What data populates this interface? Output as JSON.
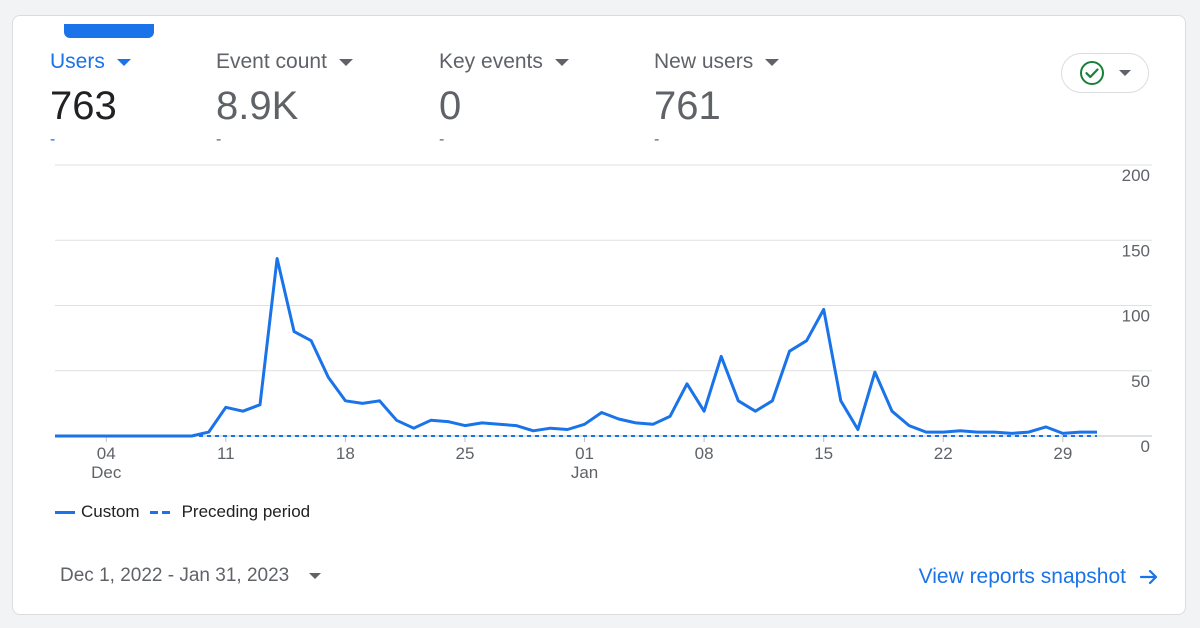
{
  "metrics": [
    {
      "label": "Users",
      "value": "763",
      "delta": "-"
    },
    {
      "label": "Event count",
      "value": "8.9K",
      "delta": "-"
    },
    {
      "label": "Key events",
      "value": "0",
      "delta": "-"
    },
    {
      "label": "New users",
      "value": "761",
      "delta": "-"
    }
  ],
  "colors": {
    "accent": "#1a73e8",
    "check": "#188038",
    "grid": "#e0e0e0",
    "text": "#5f6368"
  },
  "status_icon": "check-circle-icon",
  "legend": {
    "custom": "Custom",
    "preceding": "Preceding period"
  },
  "date_range": "Dec 1, 2022 - Jan 31, 2023",
  "view_link": "View reports snapshot",
  "chart_data": {
    "type": "line",
    "title": "",
    "xlabel": "",
    "ylabel": "",
    "ylim": [
      0,
      200
    ],
    "y_ticks": [
      "200",
      "150",
      "100",
      "50",
      "0"
    ],
    "x_ticks": [
      {
        "day": 4,
        "label": "04",
        "sublabel": "Dec"
      },
      {
        "day": 11,
        "label": "11",
        "sublabel": ""
      },
      {
        "day": 18,
        "label": "18",
        "sublabel": ""
      },
      {
        "day": 25,
        "label": "25",
        "sublabel": ""
      },
      {
        "day": 32,
        "label": "01",
        "sublabel": "Jan"
      },
      {
        "day": 39,
        "label": "08",
        "sublabel": ""
      },
      {
        "day": 46,
        "label": "15",
        "sublabel": ""
      },
      {
        "day": 53,
        "label": "22",
        "sublabel": ""
      },
      {
        "day": 60,
        "label": "29",
        "sublabel": ""
      }
    ],
    "series": [
      {
        "name": "Custom",
        "style": "solid",
        "start_day": 1,
        "values": [
          0,
          0,
          0,
          0,
          0,
          0,
          0,
          0,
          0,
          3,
          22,
          19,
          24,
          136,
          80,
          73,
          45,
          27,
          25,
          27,
          12,
          6,
          12,
          11,
          8,
          10,
          9,
          8,
          4,
          6,
          5,
          9,
          18,
          13,
          10,
          9,
          15,
          40,
          19,
          61,
          27,
          19,
          27,
          65,
          73,
          97,
          27,
          5,
          49,
          19,
          8,
          3,
          3,
          4,
          3,
          3,
          2,
          3,
          7,
          2,
          3,
          3
        ]
      },
      {
        "name": "Preceding period",
        "style": "dashed",
        "start_day": 1,
        "values": [
          0,
          0,
          0,
          0,
          0,
          0,
          0,
          0,
          0,
          0,
          0,
          0,
          0,
          0,
          0,
          0,
          0,
          0,
          0,
          0,
          0,
          0,
          0,
          0,
          0,
          0,
          0,
          0,
          0,
          0,
          0,
          0,
          0,
          0,
          0,
          0,
          0,
          0,
          0,
          0,
          0,
          0,
          0,
          0,
          0,
          0,
          0,
          0,
          0,
          0,
          0,
          0,
          0,
          0,
          0,
          0,
          0,
          0,
          0,
          0,
          0,
          0
        ]
      }
    ],
    "legend_position": "bottom-left"
  }
}
